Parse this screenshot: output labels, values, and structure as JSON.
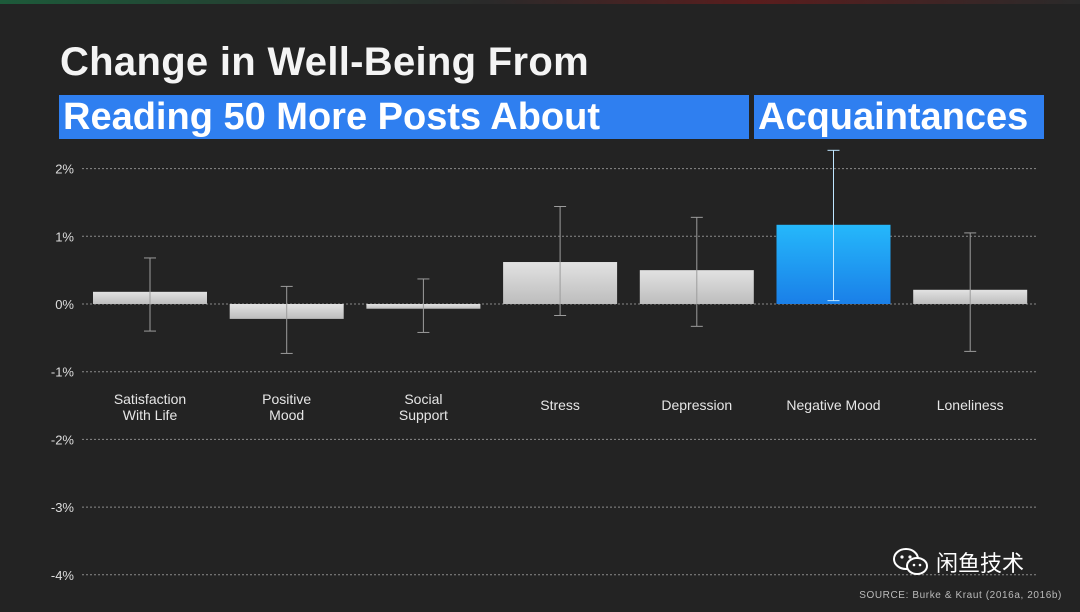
{
  "header": {
    "title_line1": "Change in Well-Being From",
    "title_highlight1": "Reading 50 More Posts About",
    "title_highlight2": "Acquaintances"
  },
  "source": "SOURCE: Burke & Kraut (2016a, 2016b)",
  "watermark": {
    "text": "闲鱼技术",
    "icon": "wechat-icon"
  },
  "colors": {
    "background": "#232323",
    "bar": "#d2d2d2",
    "highlight_bar": "#1aa3f5",
    "title_highlight": "#2f7ff0",
    "grid": "#8a8a8a"
  },
  "chart_data": {
    "type": "bar",
    "categories": [
      "Satisfaction\nWith Life",
      "Positive\nMood",
      "Social\nSupport",
      "Stress",
      "Depression",
      "Negative Mood",
      "Loneliness"
    ],
    "values": [
      0.18,
      -0.22,
      -0.07,
      0.62,
      0.5,
      1.17,
      0.21
    ],
    "error_low": [
      -0.4,
      -0.73,
      -0.42,
      -0.17,
      -0.33,
      0.05,
      -0.7
    ],
    "error_high": [
      0.68,
      0.26,
      0.37,
      1.44,
      1.28,
      2.27,
      1.05
    ],
    "highlight_index": 5,
    "yticks": [
      2,
      1,
      0,
      -1,
      -2,
      -3,
      -4
    ],
    "ytick_labels": [
      "2%",
      "1%",
      "0%",
      "-1%",
      "-2%",
      "-3%",
      "-4%"
    ],
    "ylim": [
      -4,
      2
    ],
    "grid": true,
    "title": "",
    "xlabel": "",
    "ylabel": ""
  }
}
